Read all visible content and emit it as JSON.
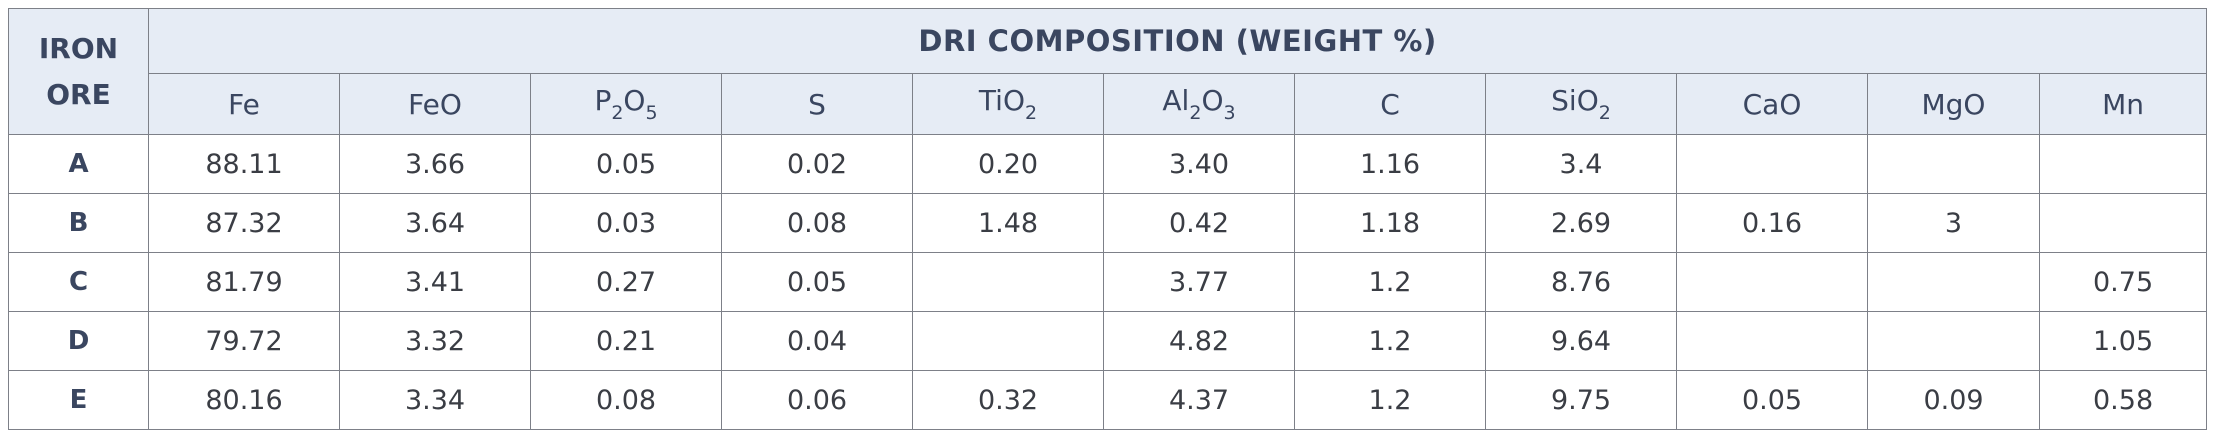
{
  "table": {
    "corner": [
      "IRON",
      "ORE"
    ],
    "group_header": "DRI  COMPOSITION (WEIGHT %)",
    "columns": [
      [
        "Fe"
      ],
      [
        "FeO"
      ],
      [
        "P",
        "2",
        "O",
        "5"
      ],
      [
        "S"
      ],
      [
        "TiO",
        "2"
      ],
      [
        "Al",
        "2",
        "O",
        "3"
      ],
      [
        "C"
      ],
      [
        "SiO",
        "2"
      ],
      [
        "CaO"
      ],
      [
        "MgO"
      ],
      [
        "Mn"
      ]
    ],
    "rows": [
      [
        "A",
        "88.11",
        "3.66",
        "0.05",
        "0.02",
        "0.20",
        "3.40",
        "1.16",
        "3.4",
        null,
        null,
        null
      ],
      [
        "B",
        "87.32",
        "3.64",
        "0.03",
        "0.08",
        "1.48",
        "0.42",
        "1.18",
        "2.69",
        "0.16",
        "3",
        null
      ],
      [
        "C",
        "81.79",
        "3.41",
        "0.27",
        "0.05",
        null,
        "3.77",
        "1.2",
        "8.76",
        null,
        null,
        "0.75"
      ],
      [
        "D",
        "79.72",
        "3.32",
        "0.21",
        "0.04",
        null,
        "4.82",
        "1.2",
        "9.64",
        null,
        null,
        "1.05"
      ],
      [
        "E",
        "80.16",
        "3.34",
        "0.08",
        "0.06",
        "0.32",
        "4.37",
        "1.2",
        "9.75",
        "0.05",
        "0.09",
        "0.58"
      ]
    ]
  }
}
